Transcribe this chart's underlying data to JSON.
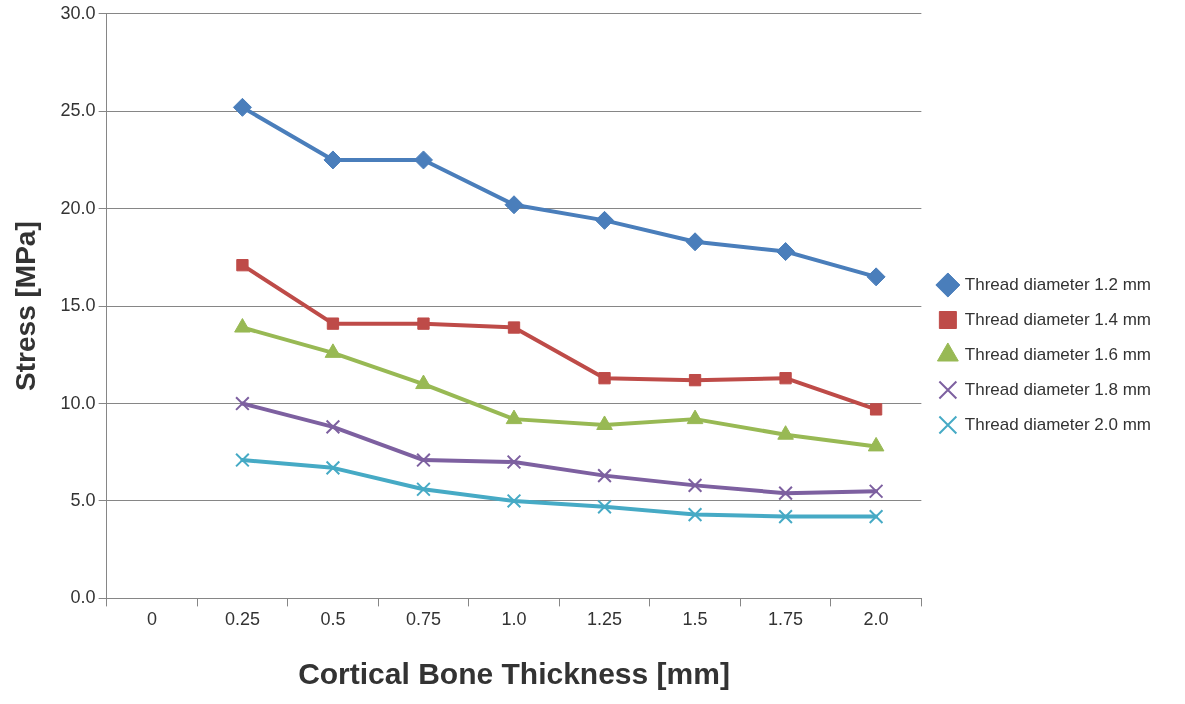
{
  "chart_data": {
    "type": "line",
    "xlabel": "Cortical Bone Thickness [mm]",
    "ylabel": "Stress [MPa]",
    "categories": [
      "0",
      "0.25",
      "0.5",
      "0.75",
      "1.0",
      "1.25",
      "1.5",
      "1.75",
      "2.0"
    ],
    "ylim": [
      0,
      30
    ],
    "yticks": [
      {
        "value": 0,
        "label": "0.0"
      },
      {
        "value": 5,
        "label": "5.0"
      },
      {
        "value": 10,
        "label": "10.0"
      },
      {
        "value": 15,
        "label": "15.0"
      },
      {
        "value": 20,
        "label": "20.0"
      },
      {
        "value": 25,
        "label": "25.0"
      },
      {
        "value": 30,
        "label": "30.0"
      }
    ],
    "grid": "y",
    "legend": "right",
    "line_style": "solid",
    "series": [
      {
        "name": "Thread diameter 1.2 mm",
        "color": "#4a7ebb",
        "marker": "diamond",
        "values": [
          null,
          25.2,
          22.5,
          22.5,
          20.2,
          19.4,
          18.3,
          17.8,
          16.5
        ]
      },
      {
        "name": "Thread diameter 1.4 mm",
        "color": "#be4b48",
        "marker": "square",
        "values": [
          null,
          17.1,
          14.1,
          14.1,
          13.9,
          11.3,
          11.2,
          11.3,
          9.7
        ]
      },
      {
        "name": "Thread diameter 1.6 mm",
        "color": "#98b954",
        "marker": "triangle",
        "values": [
          null,
          13.9,
          12.6,
          11.0,
          9.2,
          8.9,
          9.2,
          8.4,
          7.8
        ]
      },
      {
        "name": "Thread diameter 1.8 mm",
        "color": "#7d60a0",
        "marker": "cross",
        "values": [
          null,
          10.0,
          8.8,
          7.1,
          7.0,
          6.3,
          5.8,
          5.4,
          5.5
        ]
      },
      {
        "name": "Thread diameter 2.0 mm",
        "color": "#46aac5",
        "marker": "cross",
        "values": [
          null,
          7.1,
          6.7,
          5.6,
          5.0,
          4.7,
          4.3,
          4.2,
          4.2
        ]
      }
    ]
  }
}
